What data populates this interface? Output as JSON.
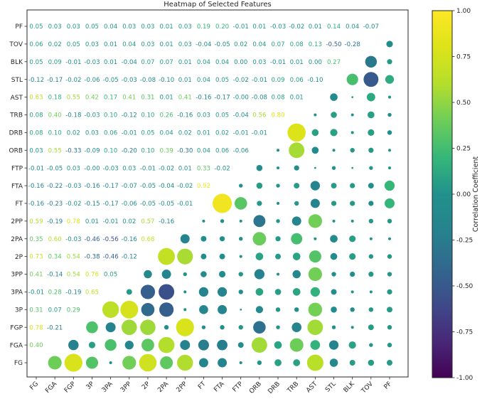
{
  "chart_data": {
    "type": "heatmap",
    "title": "Heatmap of Selected Features",
    "categories": [
      "FG",
      "FGA",
      "FGP",
      "3P",
      "3PA",
      "3PP",
      "2P",
      "2PA",
      "2PP",
      "FT",
      "FTA",
      "FTP",
      "ORB",
      "DRB",
      "TRB",
      "AST",
      "STL",
      "BLK",
      "TOV",
      "PF"
    ],
    "x_tick_labels": [
      "FG",
      "FGA",
      "FGP",
      "3P",
      "3PA",
      "3PP",
      "2P",
      "2PA",
      "2PP",
      "FT",
      "FTA",
      "FTP",
      "ORB",
      "DRB",
      "TRB",
      "AST",
      "STL",
      "BLK",
      "TOV",
      "PF"
    ],
    "y_tick_labels_top_to_bottom": [
      "PF",
      "TOV",
      "BLK",
      "STL",
      "AST",
      "TRB",
      "DRB",
      "ORB",
      "FTP",
      "FTA",
      "FT",
      "2PP",
      "2PA",
      "2P",
      "3PP",
      "3PA",
      "3P",
      "FGP",
      "FGA",
      "FG"
    ],
    "lower_triangle_values": [
      [],
      [
        "0.40"
      ],
      [
        "0.78",
        "-0.21"
      ],
      [
        "0.31",
        "0.07",
        "0.29"
      ],
      [
        "-0.01",
        "0.28",
        "-0.19",
        "0.65"
      ],
      [
        "0.41",
        "-0.14",
        "0.54",
        "0.76",
        "0.05"
      ],
      [
        "0.73",
        "0.34",
        "0.54",
        "-0.38",
        "-0.46",
        "-0.12"
      ],
      [
        "0.35",
        "0.60",
        "-0.03",
        "-0.46",
        "-0.56",
        "-0.16",
        "0.68"
      ],
      [
        "0.59",
        "-0.19",
        "0.78",
        "0.01",
        "-0.01",
        "0.02",
        "0.57",
        "-0.16"
      ],
      [
        "-0.16",
        "-0.23",
        "-0.02",
        "-0.15",
        "-0.17",
        "-0.06",
        "-0.05",
        "-0.05",
        "-0.01"
      ],
      [
        "-0.16",
        "-0.22",
        "-0.03",
        "-0.16",
        "-0.17",
        "-0.07",
        "-0.05",
        "-0.04",
        "-0.02",
        "0.92"
      ],
      [
        "-0.01",
        "-0.05",
        "0.03",
        "-0.00",
        "-0.03",
        "0.03",
        "-0.01",
        "-0.02",
        "0.01",
        "0.33",
        "-0.02"
      ],
      [
        "0.03",
        "0.55",
        "-0.33",
        "-0.09",
        "0.10",
        "-0.20",
        "0.10",
        "0.39",
        "-0.30",
        "0.04",
        "0.06",
        "-0.06"
      ],
      [
        "0.08",
        "0.10",
        "0.02",
        "0.03",
        "0.06",
        "-0.01",
        "0.05",
        "0.04",
        "0.02",
        "0.01",
        "0.02",
        "-0.01",
        "-0.01"
      ],
      [
        "0.08",
        "0.40",
        "-0.18",
        "-0.03",
        "0.10",
        "-0.12",
        "0.10",
        "0.26",
        "-0.16",
        "0.03",
        "0.05",
        "-0.04",
        "0.56",
        "0.80"
      ],
      [
        "0.63",
        "0.18",
        "0.55",
        "0.42",
        "0.17",
        "0.41",
        "0.31",
        "0.01",
        "0.41",
        "-0.16",
        "-0.17",
        "-0.00",
        "-0.08",
        "0.08",
        "0.01"
      ],
      [
        "-0.12",
        "-0.17",
        "-0.02",
        "-0.06",
        "-0.05",
        "-0.03",
        "-0.08",
        "-0.10",
        "0.01",
        "0.04",
        "0.05",
        "-0.02",
        "-0.01",
        "0.09",
        "0.06",
        "-0.10"
      ],
      [
        "0.05",
        "0.09",
        "-0.01",
        "-0.03",
        "0.01",
        "-0.04",
        "0.07",
        "0.07",
        "0.01",
        "0.04",
        "0.04",
        "0.00",
        "0.03",
        "-0.01",
        "0.01",
        "0.00",
        "0.27"
      ],
      [
        "0.06",
        "0.02",
        "0.05",
        "0.03",
        "0.01",
        "0.04",
        "0.03",
        "0.01",
        "0.03",
        "-0.04",
        "-0.05",
        "0.02",
        "0.04",
        "0.07",
        "0.08",
        "0.13",
        "-0.50",
        "-0.28"
      ],
      [
        "0.05",
        "0.03",
        "0.03",
        "0.05",
        "0.04",
        "0.03",
        "0.03",
        "0.01",
        "0.03",
        "0.19",
        "0.20",
        "-0.01",
        "0.01",
        "-0.03",
        "-0.02",
        "0.01",
        "0.14",
        "0.04",
        "-0.07"
      ]
    ],
    "colorbar": {
      "label": "Correlation Coefficient",
      "ticks": [
        "1.00",
        "0.75",
        "0.50",
        "0.25",
        "0.00",
        "-0.25",
        "-0.50",
        "-0.75",
        "-1.00"
      ],
      "vmin": -1.0,
      "vmax": 1.0
    },
    "colormap": "viridis",
    "colormap_anchors": [
      "#440154",
      "#482878",
      "#3e4a89",
      "#31688e",
      "#26828e",
      "#21918c",
      "#35b779",
      "#6dcd59",
      "#b4de2c",
      "#dde319",
      "#fde725"
    ],
    "axis_color": "#262626",
    "grid": false,
    "legend_position": "right"
  }
}
